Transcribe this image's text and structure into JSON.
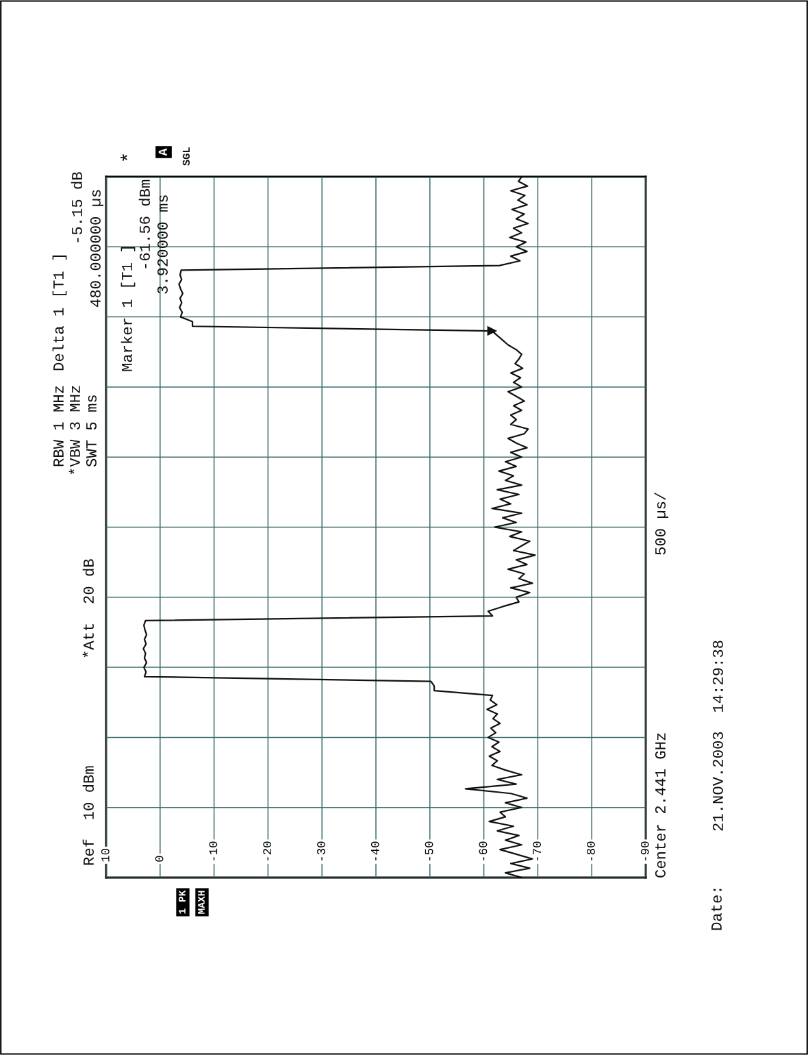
{
  "chart_data": {
    "type": "line",
    "orientation": "horizontal",
    "annotations": [
      "Ref  10 dBm",
      "*Att  20 dB",
      "RBW 1 MHz",
      "*VBW 3 MHz",
      "SWT 5 ms",
      "Delta 1 [T1 ]",
      "-5.15 dB",
      "480.000000 µs",
      "Marker 1 [T1 ]",
      "-61.56 dBm",
      "3.920000 ms",
      "*",
      "A",
      "SGL",
      "1 PK",
      "MAXH",
      "Center 2.441 GHz",
      "500 µs/",
      "Date:",
      "21.NOV.2003  14:29:38"
    ],
    "categories": [
      null,
      null,
      null,
      null,
      null,
      null,
      null,
      null,
      null,
      null,
      null,
      null,
      null,
      null,
      null,
      null,
      null,
      null,
      null,
      null,
      null,
      null,
      null,
      null,
      null,
      null,
      null,
      null,
      null,
      null,
      null,
      null,
      null,
      null,
      null,
      null,
      null,
      null,
      null,
      null,
      null,
      null,
      null,
      null,
      null,
      null,
      null,
      null,
      null,
      null,
      null,
      null,
      null,
      null,
      null,
      null,
      null,
      null,
      null,
      null,
      null,
      null,
      null,
      null,
      null,
      null,
      null,
      null,
      null,
      null,
      null,
      null,
      null,
      null,
      null,
      null,
      null,
      null,
      null,
      null,
      null,
      null,
      null,
      null,
      null,
      null,
      null,
      null,
      null,
      null,
      null,
      null,
      null,
      null,
      null,
      null,
      null,
      null,
      null,
      null,
      null,
      null,
      null,
      null,
      null,
      null,
      null,
      null,
      null,
      null,
      null,
      null,
      null,
      null,
      null,
      null,
      null,
      null,
      null,
      null,
      null,
      null,
      null,
      null,
      null,
      null,
      null,
      null,
      null,
      null,
      null,
      null,
      null,
      null,
      null,
      null,
      null,
      null,
      null,
      null,
      null,
      null,
      null,
      null,
      null,
      null,
      null,
      null,
      null,
      null,
      null
    ],
    "series": [
      {
        "color": "#111111",
        "values": [
          -67,
          -66.4,
          -68.1,
          -65,
          -67.6,
          -66.3,
          -68,
          -65.2,
          -67.5,
          -66,
          -68.2,
          -65.5,
          -67,
          -64.8,
          -67.8,
          -66,
          -68,
          -65,
          -66.7,
          -62.9,
          -3.9,
          -3.7,
          -4.0,
          -3.5,
          -3.8,
          -4.2,
          -3.7,
          -4.0,
          -3.6,
          -4.1,
          -3.8,
          -6,
          -6,
          -61.56,
          -62.5,
          -63.5,
          -64.5,
          -66,
          -67,
          -66.5,
          -65.8,
          -67.2,
          -65,
          -66.8,
          -65.5,
          -67,
          -64.5,
          -66,
          -67.5,
          -65.5,
          -67,
          -65,
          -66,
          -65,
          -68.2,
          -67.5,
          -64.5,
          -66,
          -68,
          -65,
          -67,
          -64,
          -66,
          -62.8,
          -65.5,
          -64,
          -67,
          -62.5,
          -66.5,
          -63,
          -65,
          -61.5,
          -67,
          -63.5,
          -66,
          -62,
          -67,
          -64.8,
          -68.5,
          -67,
          -65.5,
          -69.5,
          -66,
          -68,
          -64.5,
          -67.5,
          -66.5,
          -69,
          -65,
          -68.5,
          -66,
          -66.5,
          -63.5,
          -60.8,
          -61.6,
          2.7,
          3.0,
          2.8,
          2.5,
          2.9,
          2.6,
          3.1,
          2.7,
          2.9,
          2.5,
          3.0,
          2.6,
          2.9,
          -50.2,
          -50.8,
          -50.8,
          -61.6,
          -61.2,
          -62.4,
          -60.6,
          -62.5,
          -61.7,
          -63,
          -61.3,
          -62.2,
          -60.8,
          -62.8,
          -61.5,
          -63,
          -61,
          -62.5,
          -61.5,
          -64,
          -67,
          -62.5,
          -66,
          -56.6,
          -65,
          -68,
          -64,
          -67,
          -63,
          -64,
          -61,
          -65.5,
          -62.5,
          -66.5,
          -64,
          -67,
          -63,
          -66,
          -69,
          -65,
          -68.5,
          -64,
          -67
        ]
      },
      {
        "type": "scatter",
        "marker": "triangle",
        "color": "#111111",
        "values": [
          null,
          null,
          null,
          null,
          null,
          null,
          null,
          null,
          null,
          null,
          null,
          null,
          null,
          null,
          null,
          null,
          null,
          null,
          null,
          null,
          null,
          null,
          null,
          null,
          null,
          null,
          null,
          null,
          null,
          null,
          null,
          null,
          null,
          -61.56,
          null,
          null,
          null,
          null,
          null,
          null,
          null,
          null,
          null,
          null,
          null,
          null,
          null,
          null,
          null,
          null,
          null,
          null,
          null,
          null,
          null,
          null,
          null,
          null,
          null,
          null,
          null,
          null,
          null,
          null,
          null,
          null,
          null,
          null,
          null,
          null,
          null,
          null,
          null,
          null,
          null,
          null,
          null,
          null,
          null,
          null,
          null,
          null,
          null,
          null,
          null,
          null,
          null,
          null,
          null,
          null,
          null,
          null,
          null,
          null,
          null,
          null,
          null,
          null,
          null,
          null,
          null,
          null,
          null,
          null,
          null,
          null,
          null,
          null,
          null,
          null,
          null,
          null,
          null,
          null,
          null,
          null,
          null,
          null,
          null,
          null,
          null,
          null,
          null,
          null,
          null,
          null,
          null,
          null,
          null,
          null,
          null,
          null,
          null,
          null,
          null,
          null,
          null,
          null,
          null,
          null,
          null,
          null,
          null,
          null,
          null,
          null,
          null,
          null,
          null,
          null,
          null
        ]
      }
    ],
    "xlim": [
      10,
      -90
    ],
    "xticks": [
      10,
      0,
      -10,
      -20,
      -30,
      -40,
      -50,
      -60,
      -70,
      -80,
      -90
    ],
    "grid": true,
    "tick_labels": "x",
    "marker": "none",
    "line_style": "solid"
  }
}
